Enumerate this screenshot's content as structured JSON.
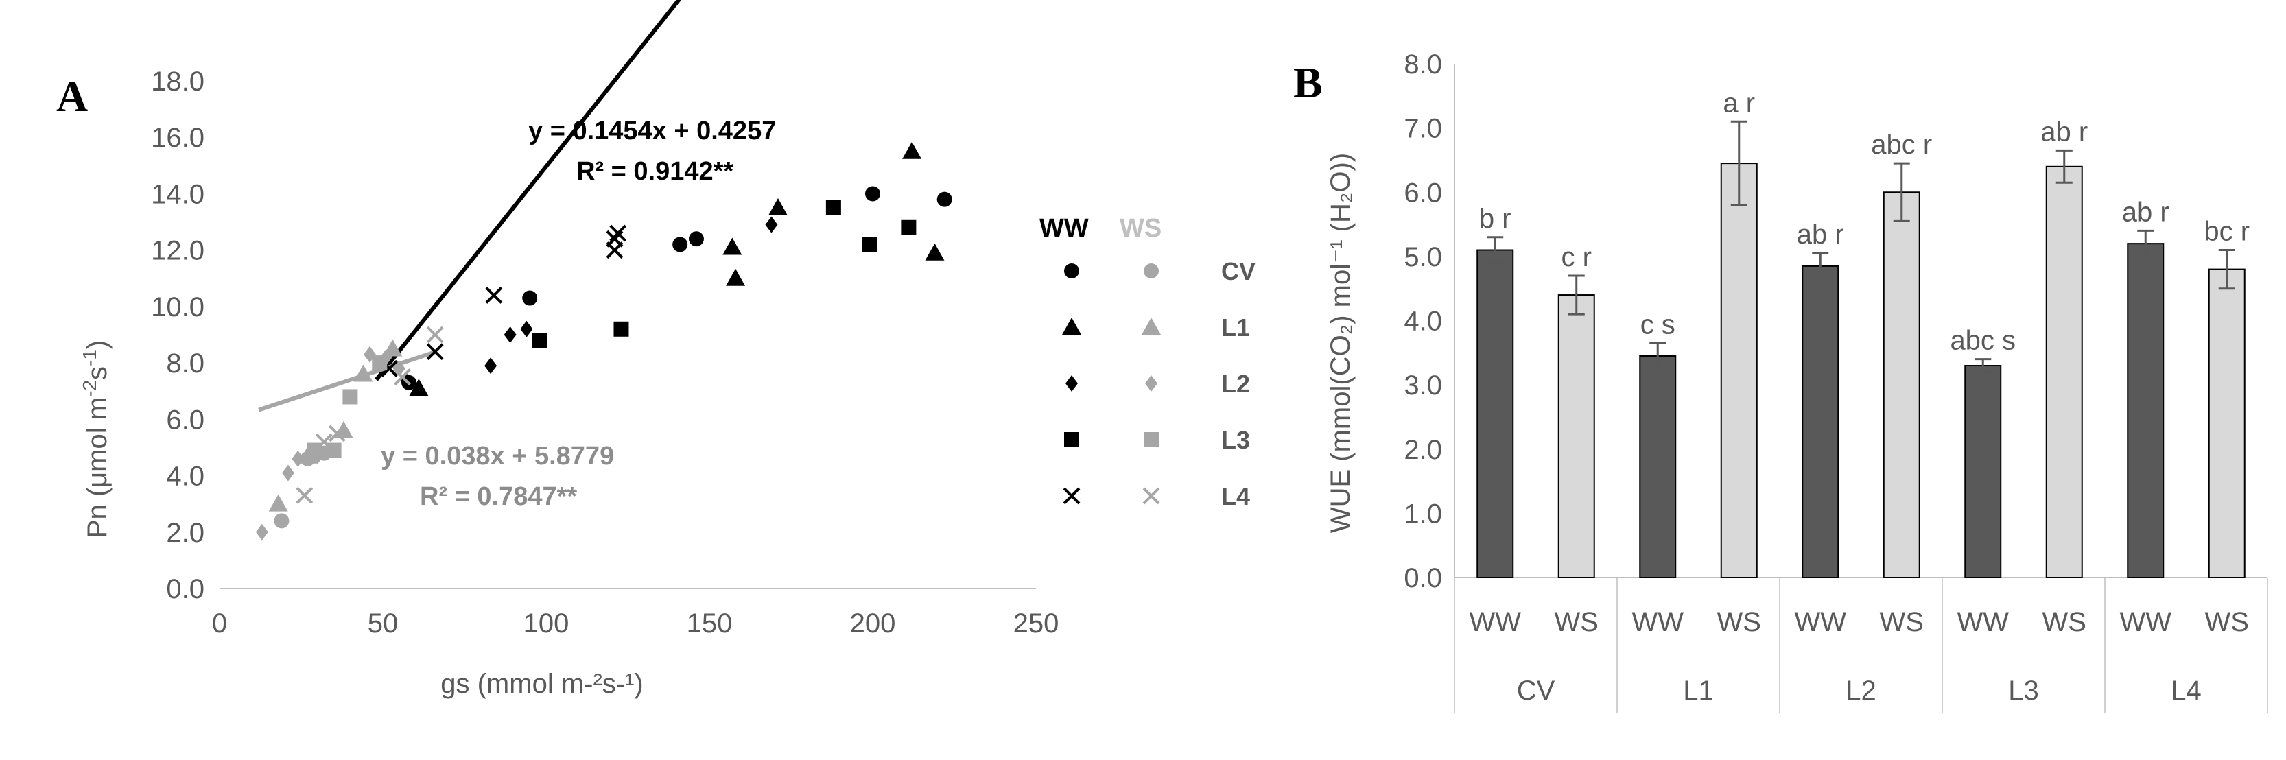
{
  "chart_data": [
    {
      "panel": "A",
      "type": "scatter",
      "xlabel": "gs (mmol m-²s-¹)",
      "ylabel": "Pn (μmol m-2s-1)",
      "xlim": [
        0,
        250
      ],
      "ylim": [
        0,
        18
      ],
      "x_ticks": [
        "0",
        "50",
        "100",
        "150",
        "200",
        "250"
      ],
      "y_ticks": [
        "0.0",
        "2.0",
        "4.0",
        "6.0",
        "8.0",
        "10.0",
        "12.0",
        "14.0",
        "16.0",
        "18.0"
      ],
      "legend": {
        "headers": [
          "WW",
          "WS"
        ],
        "entries": [
          "CV",
          "L1",
          "L2",
          "L3",
          "L4"
        ],
        "colors": {
          "WW": "#000000",
          "WS": "#a6a6a6"
        }
      },
      "trendlines": [
        {
          "name": "WW",
          "slope": 0.1454,
          "intercept": 0.4257,
          "x_range": [
            48,
            222
          ],
          "equation": "y = 0.1454x + 0.4257",
          "r2": "R² = 0.9142**",
          "color": "#000000"
        },
        {
          "name": "WS",
          "slope": 0.038,
          "intercept": 5.8779,
          "x_range": [
            12,
            66
          ],
          "equation": "y = 0.038x + 5.8779",
          "r2": "R² = 0.7847**",
          "color": "#a6a6a6"
        }
      ],
      "series": [
        {
          "name": "CV",
          "condition": "WW",
          "marker": "circle",
          "points": [
            [
              95,
              10.3
            ],
            [
              141,
              12.2
            ],
            [
              146,
              12.4
            ],
            [
              200,
              14.0
            ],
            [
              222,
              13.8
            ],
            [
              58,
              7.3
            ]
          ]
        },
        {
          "name": "L1",
          "condition": "WW",
          "marker": "triangle",
          "points": [
            [
              157,
              12.1
            ],
            [
              158,
              11.0
            ],
            [
              171,
              13.5
            ],
            [
              212,
              15.5
            ],
            [
              219,
              11.9
            ],
            [
              61,
              7.1
            ]
          ]
        },
        {
          "name": "L2",
          "condition": "WW",
          "marker": "diamond",
          "points": [
            [
              83,
              7.9
            ],
            [
              89,
              9.0
            ],
            [
              94,
              9.2
            ],
            [
              169,
              12.9
            ],
            [
              57,
              7.4
            ]
          ]
        },
        {
          "name": "L3",
          "condition": "WW",
          "marker": "square",
          "points": [
            [
              98,
              8.8
            ],
            [
              123,
              9.2
            ],
            [
              188,
              13.5
            ],
            [
              199,
              12.2
            ],
            [
              211,
              12.8
            ]
          ]
        },
        {
          "name": "L4",
          "condition": "WW",
          "marker": "x",
          "points": [
            [
              84,
              10.4
            ],
            [
              121,
              12.0
            ],
            [
              121,
              12.4
            ],
            [
              122,
              12.6
            ],
            [
              66,
              8.4
            ],
            [
              52,
              7.8
            ]
          ]
        },
        {
          "name": "CV",
          "condition": "WS",
          "marker": "circle",
          "points": [
            [
              19,
              2.4
            ],
            [
              27,
              4.6
            ],
            [
              32,
              4.8
            ]
          ]
        },
        {
          "name": "L1",
          "condition": "WS",
          "marker": "triangle",
          "points": [
            [
              18,
              3.0
            ],
            [
              27,
              4.7
            ],
            [
              38,
              5.6
            ],
            [
              44,
              7.6
            ],
            [
              53,
              8.5
            ]
          ]
        },
        {
          "name": "L2",
          "condition": "WS",
          "marker": "diamond",
          "points": [
            [
              13,
              2.0
            ],
            [
              21,
              4.1
            ],
            [
              24,
              4.6
            ],
            [
              30,
              4.7
            ],
            [
              46,
              8.3
            ],
            [
              51,
              8.2
            ],
            [
              55,
              7.8
            ]
          ]
        },
        {
          "name": "L3",
          "condition": "WS",
          "marker": "square",
          "points": [
            [
              29,
              4.9
            ],
            [
              35,
              4.9
            ],
            [
              40,
              6.8
            ],
            [
              49,
              8.0
            ]
          ]
        },
        {
          "name": "L4",
          "condition": "WS",
          "marker": "x",
          "points": [
            [
              26,
              3.3
            ],
            [
              32,
              5.2
            ],
            [
              36,
              5.5
            ],
            [
              56,
              7.5
            ],
            [
              66,
              9.0
            ]
          ]
        }
      ],
      "equations": {
        "ww_line1": "y = 0.1454x + 0.4257",
        "ww_line2": "R² = 0.9142**",
        "ws_line1": "y = 0.038x + 5.8779",
        "ws_line2": "R² = 0.7847**"
      }
    },
    {
      "panel": "B",
      "type": "bar",
      "ylabel": "WUE (mmol(CO₂) mol⁻¹ (H₂O))",
      "ylim": [
        0,
        8
      ],
      "y_ticks": [
        "0.0",
        "1.0",
        "2.0",
        "3.0",
        "4.0",
        "5.0",
        "6.0",
        "7.0",
        "8.0"
      ],
      "groups": [
        "CV",
        "L1",
        "L2",
        "L3",
        "L4"
      ],
      "conditions": [
        "WW",
        "WS"
      ],
      "colors": {
        "WW": "#595959",
        "WS": "#d9d9d9"
      },
      "bars": [
        {
          "group": "CV",
          "condition": "WW",
          "value": 5.1,
          "error": 0.2,
          "label": "b r"
        },
        {
          "group": "CV",
          "condition": "WS",
          "value": 4.4,
          "error": 0.3,
          "label": "c r"
        },
        {
          "group": "L1",
          "condition": "WW",
          "value": 3.45,
          "error": 0.2,
          "label": "c s"
        },
        {
          "group": "L1",
          "condition": "WS",
          "value": 6.45,
          "error": 0.65,
          "label": "a r"
        },
        {
          "group": "L2",
          "condition": "WW",
          "value": 4.85,
          "error": 0.2,
          "label": "ab r"
        },
        {
          "group": "L2",
          "condition": "WS",
          "value": 6.0,
          "error": 0.45,
          "label": "abc r"
        },
        {
          "group": "L3",
          "condition": "WW",
          "value": 3.3,
          "error": 0.1,
          "label": "abc s"
        },
        {
          "group": "L3",
          "condition": "WS",
          "value": 6.4,
          "error": 0.25,
          "label": "ab r"
        },
        {
          "group": "L4",
          "condition": "WW",
          "value": 5.2,
          "error": 0.2,
          "label": "ab r"
        },
        {
          "group": "L4",
          "condition": "WS",
          "value": 4.8,
          "error": 0.3,
          "label": "bc r"
        }
      ]
    }
  ]
}
